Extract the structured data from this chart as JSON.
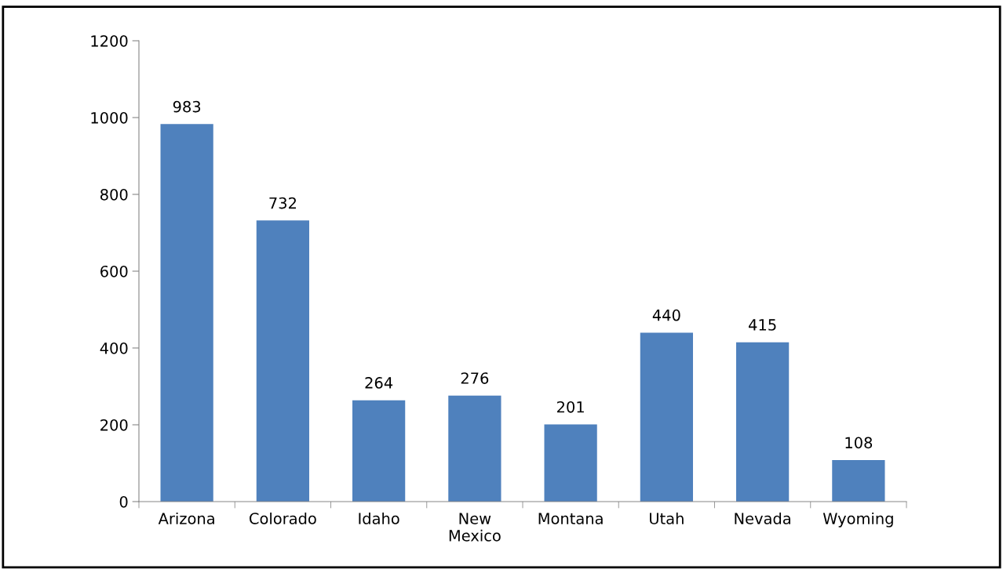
{
  "chart_data": {
    "type": "bar",
    "categories": [
      "Arizona",
      "Colorado",
      "Idaho",
      "New\nMexico",
      "Montana",
      "Utah",
      "Nevada",
      "Wyoming"
    ],
    "values": [
      983,
      732,
      264,
      276,
      201,
      440,
      415,
      108
    ],
    "color": "#4f81bd",
    "ylim": [
      0,
      1200
    ],
    "yticks": [
      0,
      200,
      400,
      600,
      800,
      1000,
      1200
    ],
    "data_labels": true,
    "grid": false,
    "legend": false
  }
}
